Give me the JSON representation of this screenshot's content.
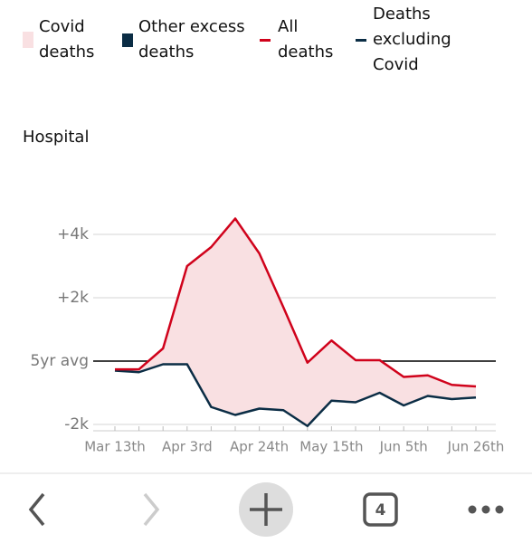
{
  "chart_data": {
    "type": "line",
    "subtitle": "Hospital",
    "categories": [
      "Mar 13th",
      null,
      null,
      "Apr 3rd",
      null,
      null,
      "Apr 24th",
      null,
      null,
      "May 15th",
      null,
      null,
      "Jun 5th",
      null,
      null,
      "Jun 26th"
    ],
    "series": [
      {
        "name": "All deaths",
        "color": "#d0021b",
        "values": [
          -260,
          -260,
          400,
          3000,
          3600,
          4500,
          3400,
          1700,
          -50,
          650,
          30,
          30,
          -500,
          -450,
          -750,
          -800
        ]
      },
      {
        "name": "Deaths excluding Covid",
        "color": "#0b2d45",
        "values": [
          -300,
          -350,
          -100,
          -100,
          -1450,
          -1700,
          -1500,
          -1550,
          -2050,
          -1250,
          -1300,
          -1000,
          -1400,
          -1100,
          -1200,
          -1150
        ]
      }
    ],
    "areas": [
      {
        "name": "Covid deaths",
        "color": "#f9e0e2"
      },
      {
        "name": "Other excess deaths",
        "color": "#0b2d45"
      }
    ],
    "ylim": [
      -2200,
      5000
    ],
    "yticks": [
      {
        "value": 4000,
        "label": "+4k"
      },
      {
        "value": 2000,
        "label": "+2k"
      },
      {
        "value": 0,
        "label": "5yr avg"
      },
      {
        "value": -2000,
        "label": "-2k"
      }
    ],
    "grid": true
  },
  "browser": {
    "tab_count": "4"
  }
}
